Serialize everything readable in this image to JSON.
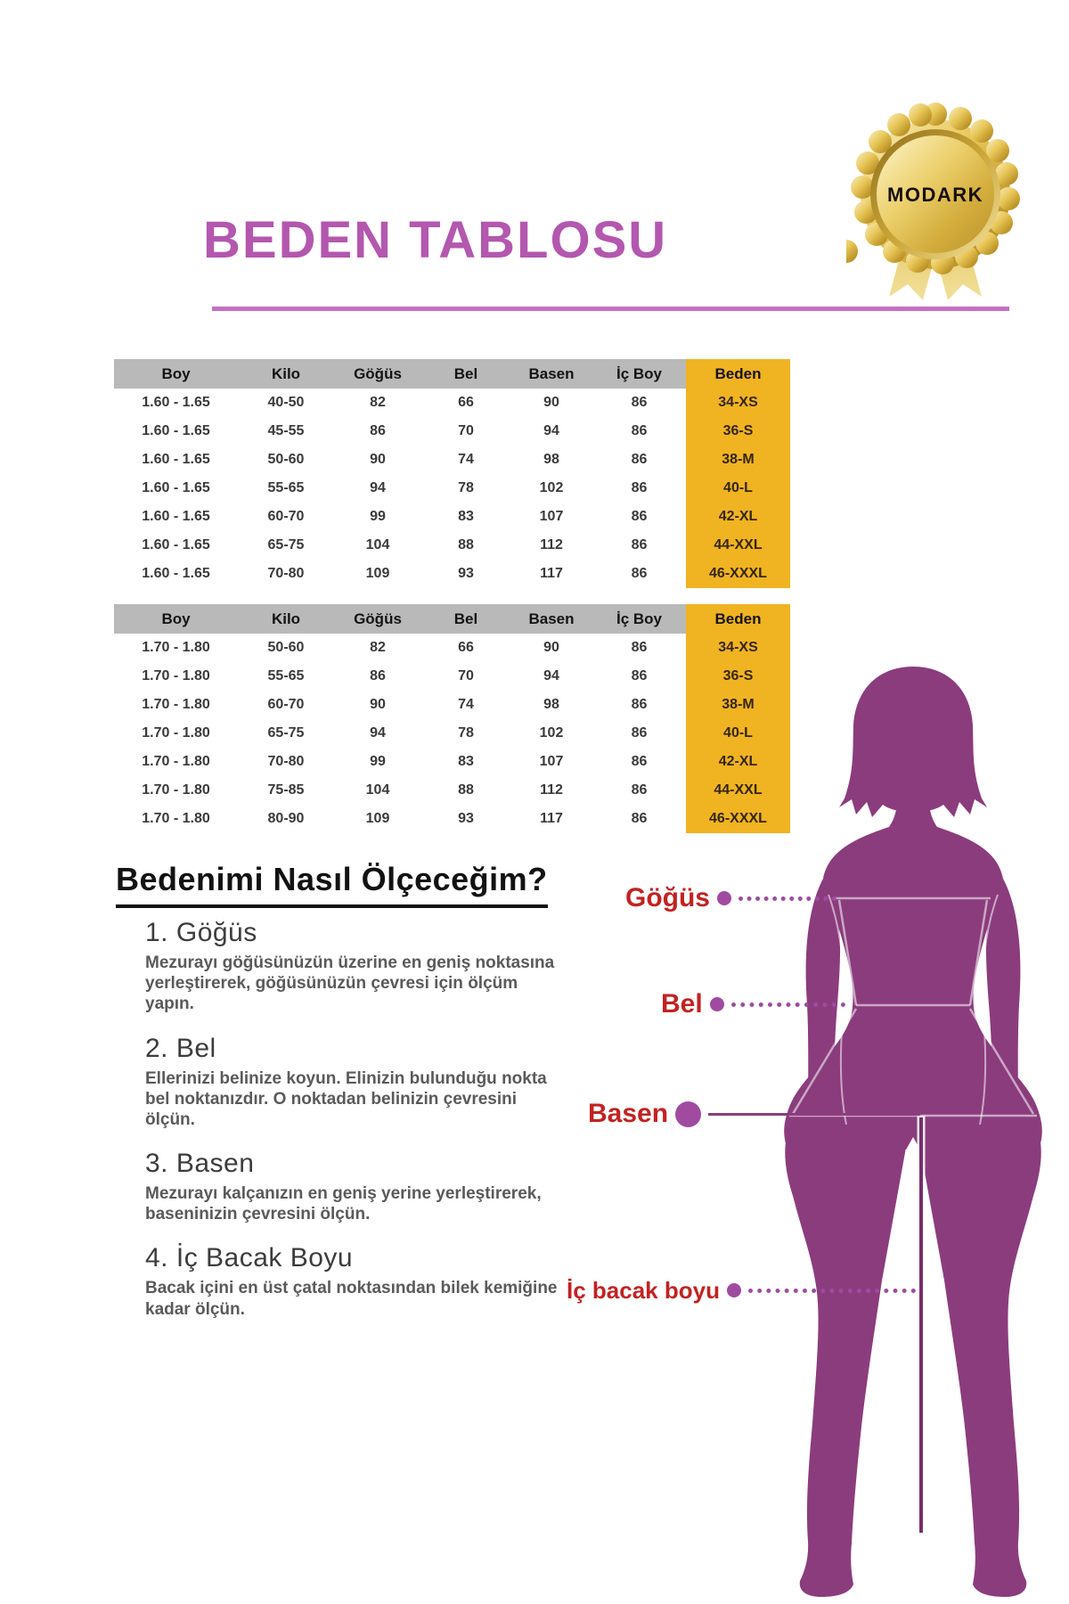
{
  "badge": {
    "brand": "MODARK"
  },
  "title": "BEDEN TABLOSU",
  "tables": [
    {
      "headers": [
        "Boy",
        "Kilo",
        "Göğüs",
        "Bel",
        "Basen",
        "İç Boy",
        "Beden"
      ],
      "rows": [
        [
          "1.60 - 1.65",
          "40-50",
          "82",
          "66",
          "90",
          "86",
          "34-XS"
        ],
        [
          "1.60 - 1.65",
          "45-55",
          "86",
          "70",
          "94",
          "86",
          "36-S"
        ],
        [
          "1.60 - 1.65",
          "50-60",
          "90",
          "74",
          "98",
          "86",
          "38-M"
        ],
        [
          "1.60 - 1.65",
          "55-65",
          "94",
          "78",
          "102",
          "86",
          "40-L"
        ],
        [
          "1.60 - 1.65",
          "60-70",
          "99",
          "83",
          "107",
          "86",
          "42-XL"
        ],
        [
          "1.60 - 1.65",
          "65-75",
          "104",
          "88",
          "112",
          "86",
          "44-XXL"
        ],
        [
          "1.60 - 1.65",
          "70-80",
          "109",
          "93",
          "117",
          "86",
          "46-XXXL"
        ]
      ]
    },
    {
      "headers": [
        "Boy",
        "Kilo",
        "Göğüs",
        "Bel",
        "Basen",
        "İç Boy",
        "Beden"
      ],
      "rows": [
        [
          "1.70 - 1.80",
          "50-60",
          "82",
          "66",
          "90",
          "86",
          "34-XS"
        ],
        [
          "1.70 - 1.80",
          "55-65",
          "86",
          "70",
          "94",
          "86",
          "36-S"
        ],
        [
          "1.70 - 1.80",
          "60-70",
          "90",
          "74",
          "98",
          "86",
          "38-M"
        ],
        [
          "1.70 - 1.80",
          "65-75",
          "94",
          "78",
          "102",
          "86",
          "40-L"
        ],
        [
          "1.70 - 1.80",
          "70-80",
          "99",
          "83",
          "107",
          "86",
          "42-XL"
        ],
        [
          "1.70 - 1.80",
          "75-85",
          "104",
          "88",
          "112",
          "86",
          "44-XXL"
        ],
        [
          "1.70 - 1.80",
          "80-90",
          "109",
          "93",
          "117",
          "86",
          "46-XXXL"
        ]
      ]
    }
  ],
  "how_to": {
    "heading": "Bedenimi Nasıl Ölçeceğim?",
    "sections": [
      {
        "title": "1. Göğüs",
        "text": "Mezurayı göğüsünüzün üzerine en geniş noktasına yerleştirerek, göğüsünüzün çevresi için ölçüm yapın."
      },
      {
        "title": "2. Bel",
        "text": "Ellerinizi belinize koyun. Elinizin bulunduğu nokta bel noktanızdır. O noktadan belinizin çevresini ölçün."
      },
      {
        "title": "3. Basen",
        "text": "Mezurayı kalçanızın en geniş yerine yerleştirerek, baseninizin çevresini ölçün."
      },
      {
        "title": "4. İç Bacak Boyu",
        "text": "Bacak içini en üst çatal noktasından bilek kemiğine kadar ölçün."
      }
    ]
  },
  "figure_labels": {
    "chest": "Göğüs",
    "waist": "Bel",
    "hip": "Basen",
    "inseam": "İç bacak boyu"
  },
  "colors": {
    "title_purple": "#b357af",
    "header_gray": "#b9b9b9",
    "beden_yellow": "#f0b322",
    "label_red": "#c32222",
    "body_purple": "#8b3c7d",
    "dot_purple": "#a04ba0",
    "badge_gold": "#e7c556"
  }
}
